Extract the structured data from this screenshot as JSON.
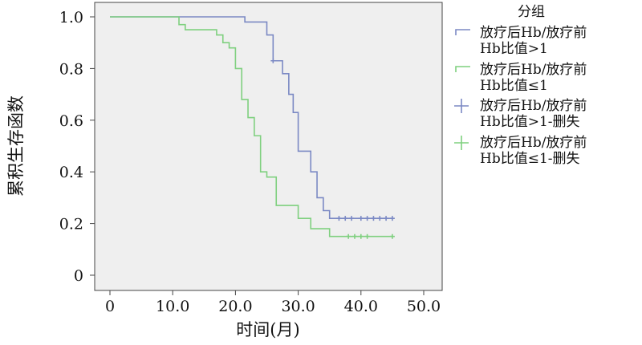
{
  "chart_data": {
    "type": "line",
    "xlabel": "时间(月)",
    "ylabel": "累积生存函数",
    "xlim": [
      0,
      50
    ],
    "ylim": [
      0,
      1.0
    ],
    "x_ticks": [
      "0",
      "10.0",
      "20.0",
      "30.0",
      "40.0",
      "50.0"
    ],
    "y_ticks": [
      "0",
      "0.2",
      "0.4",
      "0.6",
      "0.8",
      "1.0"
    ],
    "grid": false,
    "legend_position": "right",
    "legend": {
      "title": "分组",
      "entries": [
        {
          "lines": [
            "放疗后Hb/放疗前",
            "Hb比值>1"
          ],
          "symbol": "step",
          "color": "#7b89c4"
        },
        {
          "lines": [
            "放疗后Hb/放疗前",
            "Hb比值≤1"
          ],
          "symbol": "step",
          "color": "#7fd07f"
        },
        {
          "lines": [
            "放疗后Hb/放疗前",
            "Hb比值>1-删失"
          ],
          "symbol": "plus",
          "color": "#7b89c4"
        },
        {
          "lines": [
            "放疗后Hb/放疗前",
            "Hb比值≤1-删失"
          ],
          "symbol": "plus",
          "color": "#7fd07f"
        }
      ]
    },
    "series": [
      {
        "name": "放疗后Hb/放疗前Hb比值>1",
        "color": "#7b89c4",
        "steps": [
          [
            0,
            1.0
          ],
          [
            21.5,
            0.98
          ],
          [
            25,
            0.93
          ],
          [
            26,
            0.83
          ],
          [
            27.5,
            0.78
          ],
          [
            28.5,
            0.7
          ],
          [
            29.2,
            0.63
          ],
          [
            30,
            0.48
          ],
          [
            32,
            0.4
          ],
          [
            33,
            0.3
          ],
          [
            34,
            0.25
          ],
          [
            35,
            0.22
          ],
          [
            45,
            0.22
          ]
        ],
        "censored": [
          [
            26,
            0.83
          ],
          [
            36.5,
            0.22
          ],
          [
            37.5,
            0.22
          ],
          [
            38.5,
            0.22
          ],
          [
            40,
            0.22
          ],
          [
            41,
            0.22
          ],
          [
            42,
            0.22
          ],
          [
            43,
            0.22
          ],
          [
            44,
            0.22
          ],
          [
            45,
            0.22
          ]
        ]
      },
      {
        "name": "放疗后Hb/放疗前Hb比值≤1",
        "color": "#7fd07f",
        "steps": [
          [
            0,
            1.0
          ],
          [
            11,
            0.97
          ],
          [
            12,
            0.95
          ],
          [
            17,
            0.93
          ],
          [
            18,
            0.9
          ],
          [
            19,
            0.88
          ],
          [
            20,
            0.8
          ],
          [
            21,
            0.68
          ],
          [
            22,
            0.61
          ],
          [
            23,
            0.54
          ],
          [
            24,
            0.4
          ],
          [
            25,
            0.38
          ],
          [
            26.5,
            0.27
          ],
          [
            30,
            0.22
          ],
          [
            32,
            0.18
          ],
          [
            35,
            0.15
          ],
          [
            45,
            0.15
          ]
        ],
        "censored": [
          [
            38,
            0.15
          ],
          [
            39,
            0.15
          ],
          [
            40,
            0.15
          ],
          [
            41,
            0.15
          ],
          [
            45,
            0.15
          ]
        ]
      }
    ]
  }
}
